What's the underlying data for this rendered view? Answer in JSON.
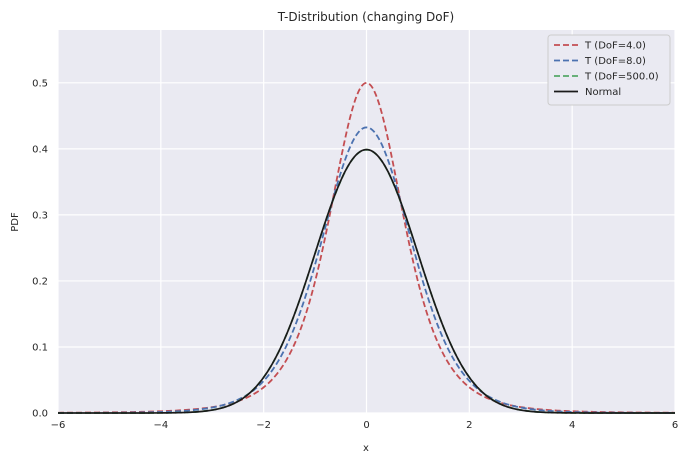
{
  "chart_data": {
    "type": "line",
    "title": "T-Distribution (changing DoF)",
    "xlabel": "x",
    "ylabel": "PDF",
    "xlim": [
      -6,
      6
    ],
    "ylim": [
      0,
      0.58
    ],
    "xticks": [
      -6,
      -4,
      -2,
      0,
      2,
      4,
      6
    ],
    "xtick_labels": [
      "−6",
      "−4",
      "−2",
      "0",
      "2",
      "4",
      "6"
    ],
    "yticks": [
      0.0,
      0.1,
      0.2,
      0.3,
      0.4,
      0.5
    ],
    "ytick_labels": [
      "0.0",
      "0.1",
      "0.2",
      "0.3",
      "0.4",
      "0.5"
    ],
    "grid": true,
    "legend_position": "top-right",
    "series": [
      {
        "name": "T (DoF=4.0)",
        "color": "#c44e52",
        "dash": "dashed",
        "scale": 0.75,
        "dof": 4.0,
        "peak": 0.53
      },
      {
        "name": "T (DoF=8.0)",
        "color": "#4c72b0",
        "dash": "dashed",
        "scale": 0.894,
        "dof": 8.0,
        "peak": 0.446
      },
      {
        "name": "T (DoF=500.0)",
        "color": "#55a868",
        "dash": "dashed",
        "scale": 1.0,
        "dof": 500.0,
        "peak": 0.399
      },
      {
        "name": "Normal",
        "color": "#1a1a1a",
        "dash": "solid",
        "scale": 1.0,
        "dof": null,
        "peak": 0.399
      }
    ]
  }
}
